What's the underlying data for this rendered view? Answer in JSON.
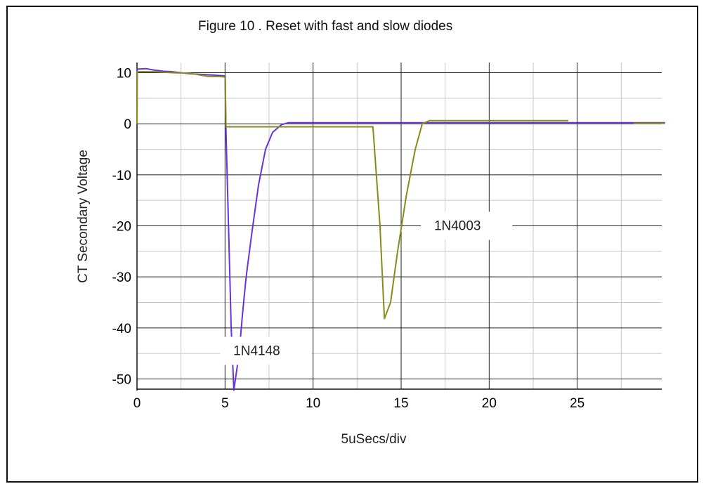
{
  "chart_data": {
    "type": "line",
    "title": "Figure 10 . Reset with fast and slow diodes",
    "xlabel": "5uSecs/div",
    "ylabel": "CT Secondary Voltage",
    "xlim": [
      0,
      30
    ],
    "ylim": [
      -52,
      12
    ],
    "grid": true,
    "x_ticks": [
      0,
      5,
      10,
      15,
      20,
      25
    ],
    "y_ticks": [
      10,
      0,
      -10,
      -20,
      -30,
      -40,
      -50
    ],
    "series": [
      {
        "name": "1N4148",
        "color": "#6633dd",
        "points": [
          [
            0,
            0
          ],
          [
            0.01,
            10.7
          ],
          [
            0.5,
            10.8
          ],
          [
            1,
            10.5
          ],
          [
            1.5,
            10.3
          ],
          [
            2,
            10.2
          ],
          [
            3,
            9.8
          ],
          [
            4,
            9.6
          ],
          [
            4.9,
            9.4
          ],
          [
            5.01,
            9.3
          ],
          [
            5.05,
            -1
          ],
          [
            5.2,
            -20
          ],
          [
            5.35,
            -40
          ],
          [
            5.5,
            -52.2
          ],
          [
            5.8,
            -45
          ],
          [
            6,
            -37
          ],
          [
            6.2,
            -30
          ],
          [
            6.5,
            -22
          ],
          [
            6.9,
            -12
          ],
          [
            7.3,
            -5
          ],
          [
            7.7,
            -1.7
          ],
          [
            8.2,
            -0.2
          ],
          [
            8.6,
            0.2
          ],
          [
            10,
            0.2
          ],
          [
            20,
            0.2
          ],
          [
            30,
            0.2
          ]
        ]
      },
      {
        "name": "1N4003",
        "color": "#8a8a1a",
        "points": [
          [
            0,
            0
          ],
          [
            0.01,
            10.2
          ],
          [
            1,
            10.2
          ],
          [
            2,
            10
          ],
          [
            3,
            9.9
          ],
          [
            4,
            9.3
          ],
          [
            4.9,
            9.2
          ],
          [
            5.01,
            9.1
          ],
          [
            5.05,
            -0.6
          ],
          [
            7,
            -0.6
          ],
          [
            10,
            -0.6
          ],
          [
            13.4,
            -0.6
          ],
          [
            13.8,
            -20
          ],
          [
            14.05,
            -38.2
          ],
          [
            14.4,
            -35
          ],
          [
            14.8,
            -25
          ],
          [
            15.3,
            -14
          ],
          [
            15.8,
            -5
          ],
          [
            16.2,
            0
          ],
          [
            16.6,
            0.6
          ],
          [
            20,
            0.6
          ],
          [
            24.5,
            0.6
          ]
        ]
      },
      {
        "name": "",
        "color": "#8a8a1a",
        "points": [
          [
            28.2,
            0.1
          ],
          [
            30,
            0.1
          ]
        ]
      }
    ],
    "annotations": [
      {
        "text": "1N4148",
        "x": 6.8,
        "y": -44.5
      },
      {
        "text": "1N4003",
        "x": 18.2,
        "y": -20
      }
    ]
  }
}
